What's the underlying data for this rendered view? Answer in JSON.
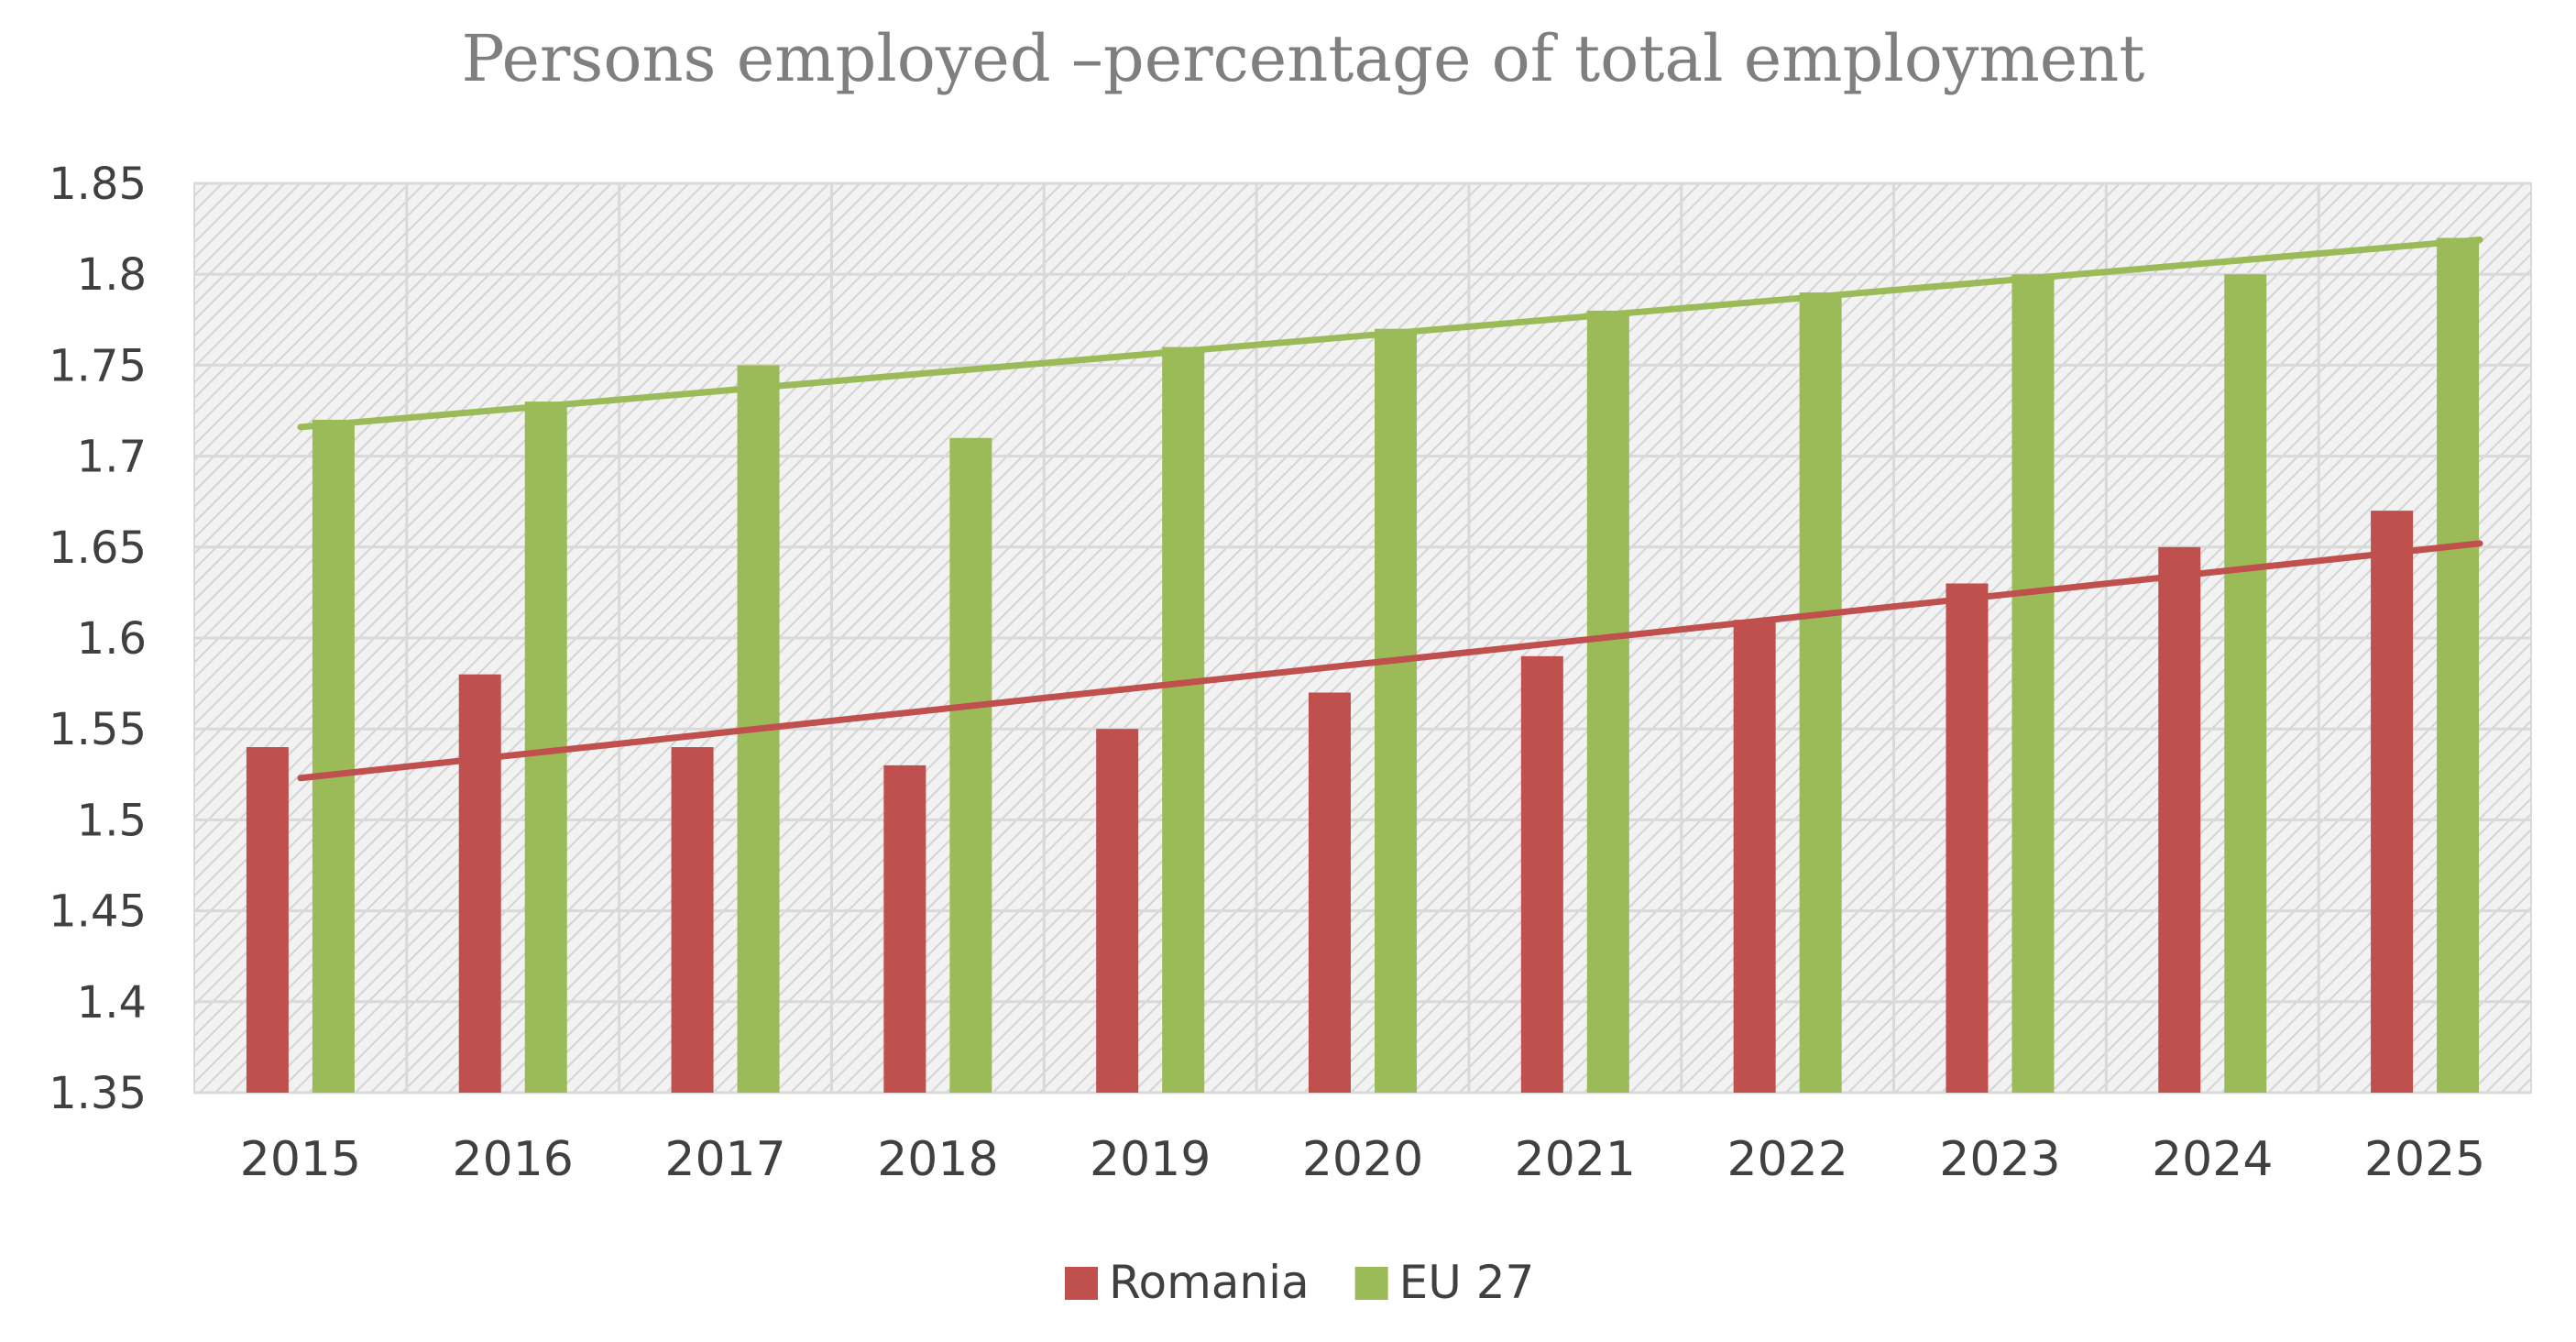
{
  "chart_data": {
    "type": "bar",
    "title": "Persons employed –percentage of total employment",
    "xlabel": "",
    "ylabel": "",
    "categories": [
      "2015",
      "2016",
      "2017",
      "2018",
      "2019",
      "2020",
      "2021",
      "2022",
      "2023",
      "2024",
      "2025"
    ],
    "series": [
      {
        "name": "Romania",
        "color": "#c0504d",
        "values": [
          1.54,
          1.58,
          1.54,
          1.53,
          1.55,
          1.57,
          1.59,
          1.61,
          1.63,
          1.65,
          1.67
        ],
        "trendline": {
          "type": "linear",
          "start": 1.523,
          "end": 1.652
        }
      },
      {
        "name": "EU 27",
        "color": "#9bbb59",
        "values": [
          1.72,
          1.73,
          1.75,
          1.71,
          1.76,
          1.77,
          1.78,
          1.79,
          1.8,
          1.8,
          1.82
        ],
        "trendline": {
          "type": "linear",
          "start": 1.716,
          "end": 1.819
        }
      }
    ],
    "ylim": [
      1.35,
      1.85
    ],
    "yticks": [
      "1.35",
      "1.4",
      "1.45",
      "1.5",
      "1.55",
      "1.6",
      "1.65",
      "1.7",
      "1.75",
      "1.8",
      "1.85"
    ],
    "grid": true,
    "legend": "bottom-center"
  }
}
